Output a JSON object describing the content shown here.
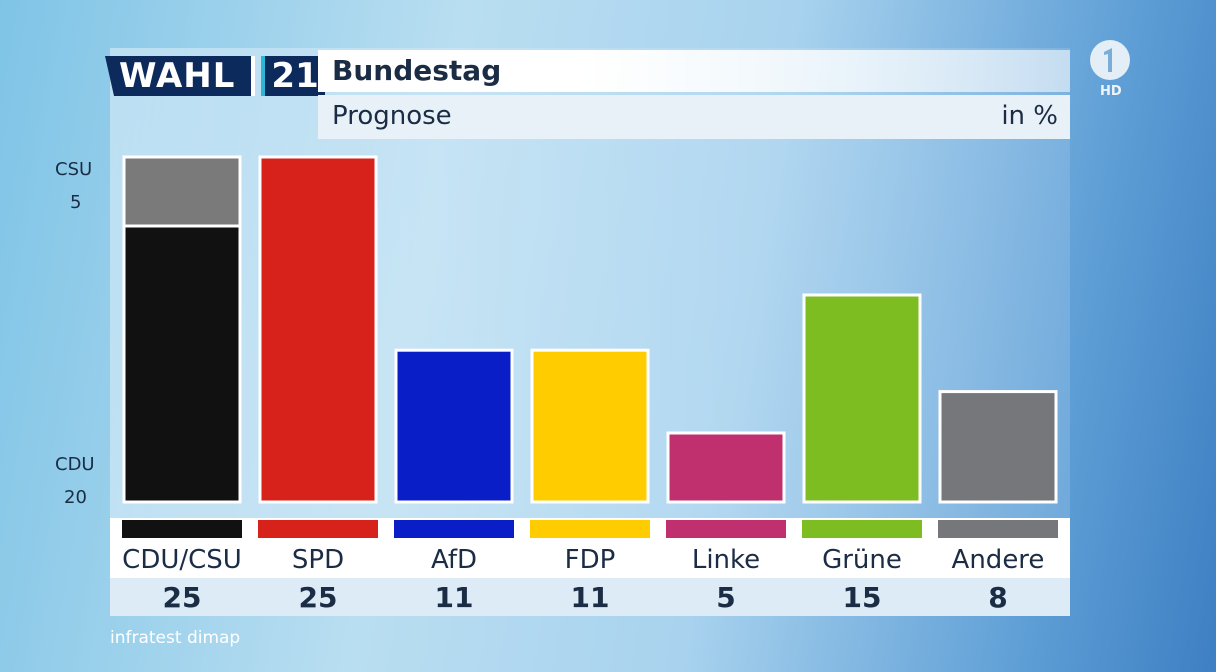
{
  "header": {
    "logo_wahl": "WAHL",
    "logo_year": "21",
    "title": "Bundestag",
    "subtitle": "Prognose",
    "unit": "in %"
  },
  "segment_labels": {
    "top_name": "CSU",
    "top_value": "5",
    "bottom_name": "CDU",
    "bottom_value": "20"
  },
  "source": "infratest dimap",
  "broadcaster": {
    "logo_icon": "ard-one-icon",
    "hd_label": "HD"
  },
  "chart_data": {
    "type": "bar",
    "categories": [
      "CDU/CSU",
      "SPD",
      "AfD",
      "FDP",
      "Linke",
      "Grüne",
      "Andere"
    ],
    "values": [
      25,
      25,
      11,
      11,
      5,
      15,
      8
    ],
    "stacked_first_bar": {
      "category": "CDU/CSU",
      "segments": [
        {
          "name": "CDU",
          "value": 20,
          "color": "#111111"
        },
        {
          "name": "CSU",
          "value": 5,
          "color": "#7a7a7a"
        }
      ]
    },
    "colors": [
      "#111111",
      "#d7211b",
      "#0a1ec8",
      "#ffcc00",
      "#c0306f",
      "#7dbd22",
      "#75777b"
    ],
    "ylim": [
      0,
      25
    ],
    "grid": false
  }
}
